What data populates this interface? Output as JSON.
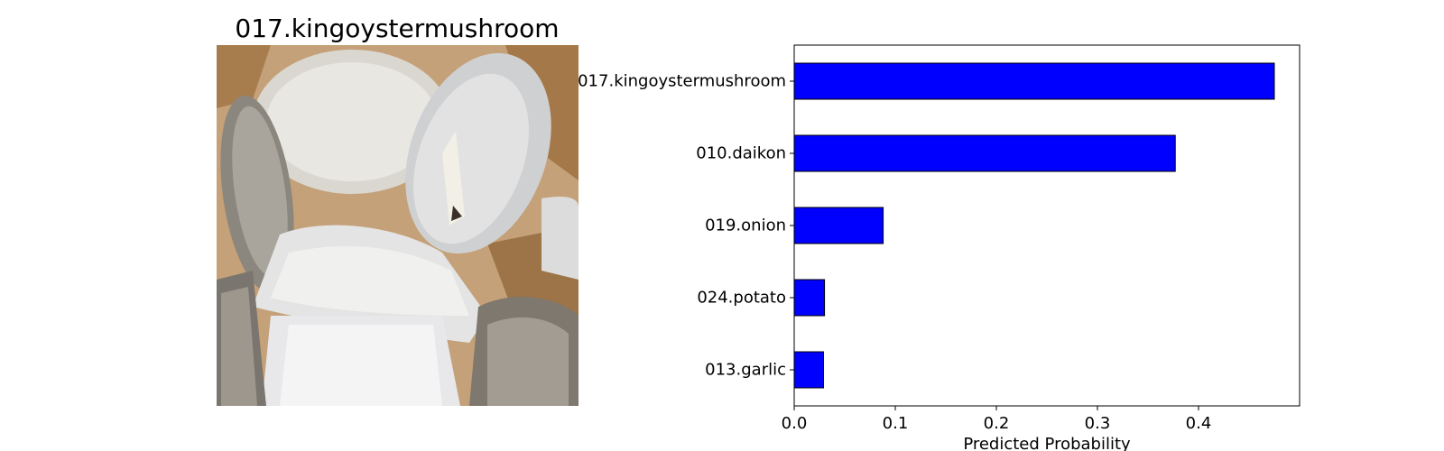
{
  "image_panel": {
    "title": "017.kingoystermushroom",
    "photo_subject": "king oyster mushrooms (sliced)"
  },
  "chart_data": {
    "type": "bar",
    "orientation": "horizontal",
    "title": "",
    "xlabel": "Predicted Probability",
    "ylabel": "",
    "categories": [
      "017.kingoystermushroom",
      "010.daikon",
      "019.onion",
      "024.potato",
      "013.garlic"
    ],
    "values": [
      0.475,
      0.377,
      0.088,
      0.03,
      0.029
    ],
    "xlim": [
      0,
      0.5
    ],
    "xticks": [
      0.0,
      0.1,
      0.2,
      0.3,
      0.4
    ],
    "xtick_labels": [
      "0.0",
      "0.1",
      "0.2",
      "0.3",
      "0.4"
    ],
    "bar_color": "#0000ff",
    "bar_edge_color": "#000000",
    "grid": false,
    "legend": "none"
  }
}
